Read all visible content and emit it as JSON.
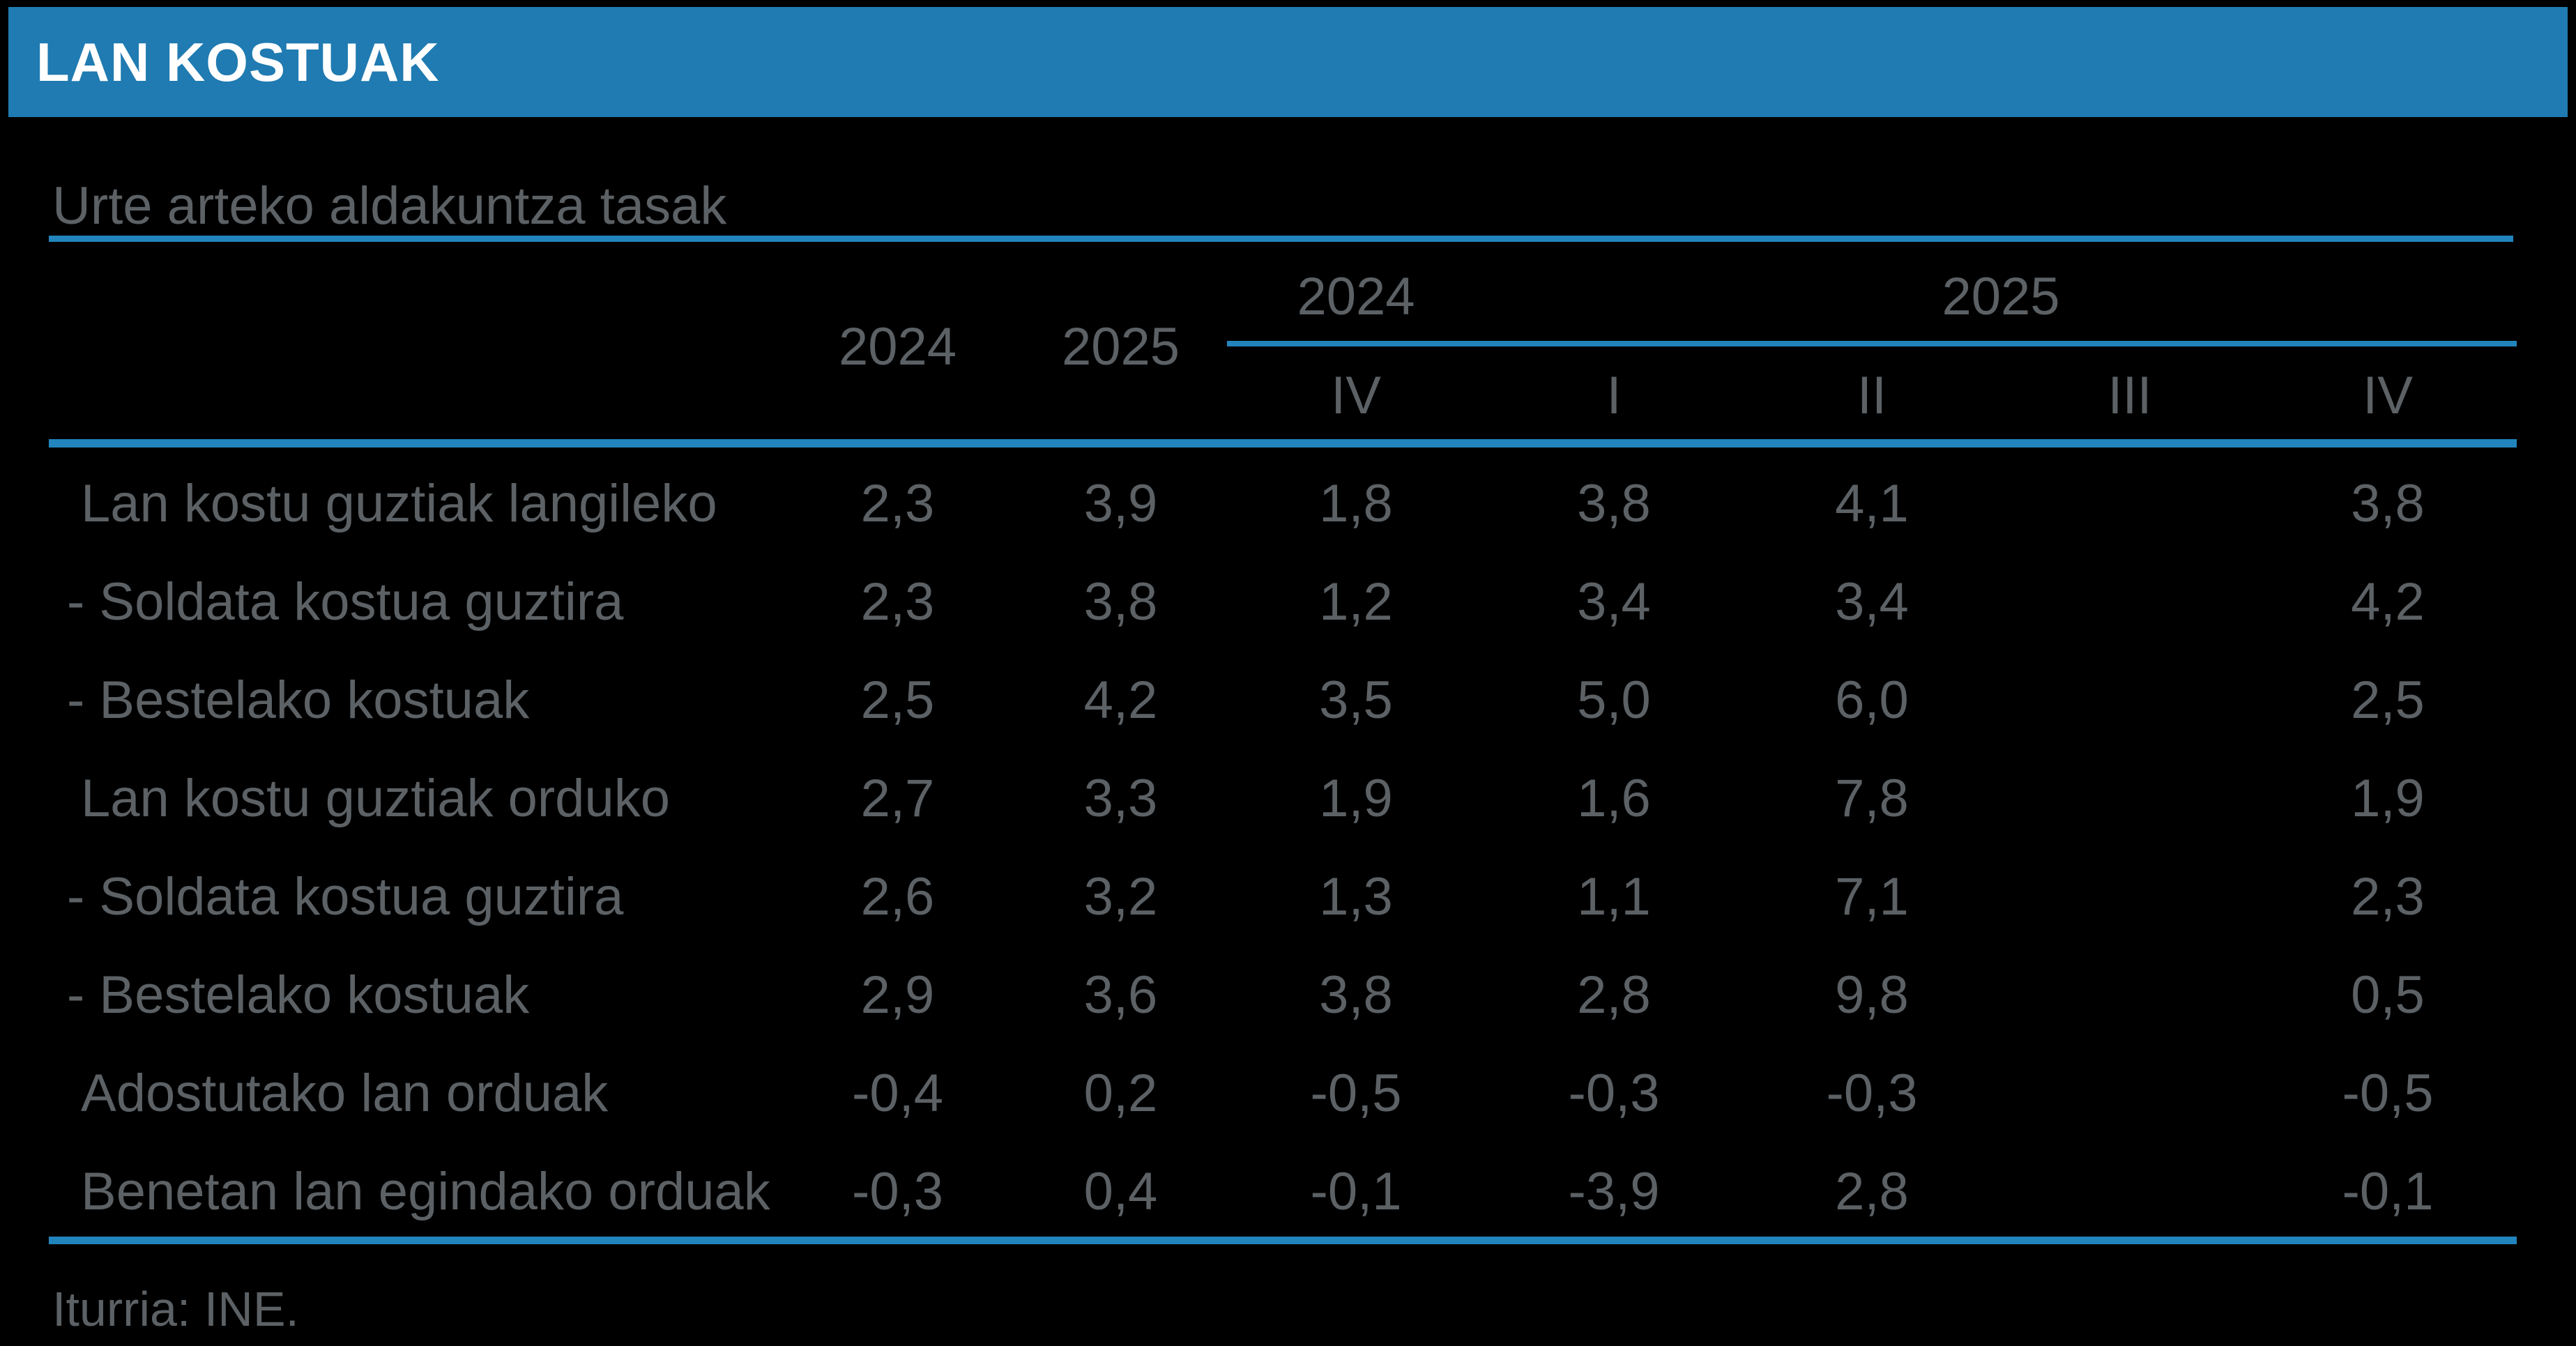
{
  "header": {
    "title": "LAN KOSTUAK"
  },
  "subtitle": "Urte arteko aldakuntza tasak",
  "colors": {
    "title_bar": "#1F7BB1",
    "rule_blue": "#2284BD",
    "text_gray": "#5C6165",
    "background": "#000000",
    "title_text": "#FFFFFF"
  },
  "table": {
    "year_headers": [
      "2024",
      "2025"
    ],
    "group_headers": [
      "2024",
      "2025"
    ],
    "quarter_headers": [
      "IV",
      "I",
      "II",
      "III",
      "IV"
    ],
    "rows": [
      {
        "label": "Lan kostu guztiak langileko",
        "indent": true,
        "values": [
          "2,3",
          "3,9",
          "1,8",
          "3,8",
          "4,1",
          "",
          "3,8"
        ]
      },
      {
        "label": "- Soldata kostua guztira",
        "indent": false,
        "values": [
          "2,3",
          "3,8",
          "1,2",
          "3,4",
          "3,4",
          "",
          "4,2"
        ]
      },
      {
        "label": "- Bestelako kostuak",
        "indent": false,
        "values": [
          "2,5",
          "4,2",
          "3,5",
          "5,0",
          "6,0",
          "",
          "2,5"
        ]
      },
      {
        "label": "Lan kostu guztiak orduko",
        "indent": true,
        "values": [
          "2,7",
          "3,3",
          "1,9",
          "1,6",
          "7,8",
          "",
          "1,9"
        ]
      },
      {
        "label": "- Soldata kostua guztira",
        "indent": false,
        "values": [
          "2,6",
          "3,2",
          "1,3",
          "1,1",
          "7,1",
          "",
          "2,3"
        ]
      },
      {
        "label": "- Bestelako kostuak",
        "indent": false,
        "values": [
          "2,9",
          "3,6",
          "3,8",
          "2,8",
          "9,8",
          "",
          "0,5"
        ]
      },
      {
        "label": "Adostutako lan orduak",
        "indent": true,
        "values": [
          "-0,4",
          "0,2",
          "-0,5",
          "-0,3",
          "-0,3",
          "",
          "-0,5"
        ]
      },
      {
        "label": "Benetan lan egindako orduak",
        "indent": true,
        "values": [
          "-0,3",
          "0,4",
          "-0,1",
          "-3,9",
          "2,8",
          "",
          "-0,1"
        ]
      }
    ]
  },
  "footer": {
    "source": "Iturria: INE."
  },
  "chart_data": {
    "type": "table",
    "title": "LAN KOSTUAK",
    "subtitle": "Urte arteko aldakuntza tasak",
    "column_groups": [
      "",
      "",
      "",
      "2024",
      "2025",
      "2025",
      "2025",
      "2025"
    ],
    "columns": [
      "",
      "2024",
      "2025",
      "IV",
      "I",
      "II",
      "III",
      "IV"
    ],
    "rows": [
      [
        "Lan kostu guztiak langileko",
        2.3,
        3.9,
        1.8,
        3.8,
        4.1,
        null,
        3.8
      ],
      [
        "- Soldata kostua guztira",
        2.3,
        3.8,
        1.2,
        3.4,
        3.4,
        null,
        4.2
      ],
      [
        "- Bestelako kostuak",
        2.5,
        4.2,
        3.5,
        5.0,
        6.0,
        null,
        2.5
      ],
      [
        "Lan kostu guztiak orduko",
        2.7,
        3.3,
        1.9,
        1.6,
        7.8,
        null,
        1.9
      ],
      [
        "- Soldata kostua guztira",
        2.6,
        3.2,
        1.3,
        1.1,
        7.1,
        null,
        2.3
      ],
      [
        "- Bestelako kostuak",
        2.9,
        3.6,
        3.8,
        2.8,
        9.8,
        null,
        0.5
      ],
      [
        "Adostutako lan orduak",
        -0.4,
        0.2,
        -0.5,
        -0.3,
        -0.3,
        null,
        -0.5
      ],
      [
        "Benetan lan egindako orduak",
        -0.3,
        0.4,
        -0.1,
        -3.9,
        2.8,
        null,
        -0.1
      ]
    ],
    "source": "Iturria: INE."
  }
}
